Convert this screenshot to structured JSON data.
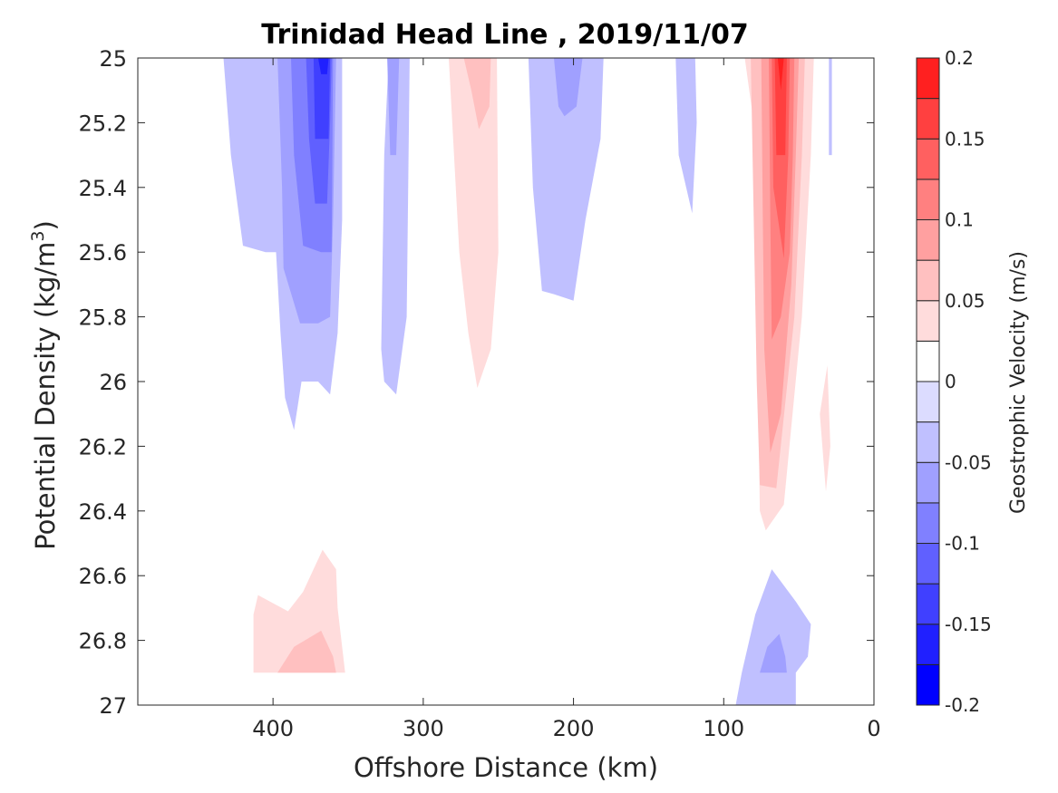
{
  "chart_data": {
    "type": "contour",
    "title": "Trinidad Head Line , 2019/11/07",
    "xlabel": "Offshore Distance (km)",
    "ylabel": "Potential Density (kg/m",
    "ylabel_sup": "3",
    "ylabel_close": ")",
    "xlim": [
      490,
      0
    ],
    "ylim": [
      25,
      27
    ],
    "x_reversed": true,
    "y_reversed": true,
    "xticks": [
      400,
      300,
      200,
      100,
      0
    ],
    "yticks": [
      25,
      25.2,
      25.4,
      25.6,
      25.8,
      26,
      26.2,
      26.4,
      26.6,
      26.8,
      27
    ],
    "ytick_labels": [
      "25",
      "25.2",
      "25.4",
      "25.6",
      "25.8",
      "26",
      "26.2",
      "26.4",
      "26.6",
      "26.8",
      "27"
    ],
    "colorbar": {
      "label": "Geostrophic Velocity (m/s)",
      "range": [
        -0.2,
        0.2
      ],
      "ticks": [
        -0.2,
        -0.15,
        -0.1,
        -0.05,
        0,
        0.05,
        0.1,
        0.15,
        0.2
      ],
      "tick_labels": [
        "-0.2",
        "-0.15",
        "-0.1",
        "-0.05",
        "0",
        "0.05",
        "0.1",
        "0.15",
        "0.2"
      ],
      "levels": [
        -0.2,
        -0.175,
        -0.15,
        -0.125,
        -0.1,
        -0.075,
        -0.05,
        -0.025,
        0,
        0.025,
        0.05,
        0.075,
        0.1,
        0.125,
        0.15,
        0.175,
        0.2
      ],
      "colors": [
        "#0000ff",
        "#2020ff",
        "#4040ff",
        "#6060ff",
        "#8080ff",
        "#a0a0ff",
        "#c0c0ff",
        "#dcdcff",
        "#ffffff",
        "#ffdcdc",
        "#ffc0c0",
        "#ffa0a0",
        "#ff8080",
        "#ff6060",
        "#ff4040",
        "#ff2020"
      ]
    },
    "regions": [
      {
        "name": "neg-core-left",
        "levels": [
          {
            "v": -0.025,
            "pts": [
              [
                433,
                25
              ],
              [
                428,
                25.3
              ],
              [
                420,
                25.58
              ],
              [
                405,
                25.6
              ],
              [
                398,
                25.6
              ],
              [
                395,
                25.85
              ],
              [
                392,
                26.05
              ],
              [
                386,
                26.15
              ],
              [
                381,
                26.0
              ],
              [
                370,
                26.0
              ],
              [
                362,
                26.04
              ],
              [
                357,
                25.85
              ],
              [
                354,
                25.5
              ],
              [
                354,
                25
              ]
            ]
          },
          {
            "v": -0.05,
            "pts": [
              [
                397,
                25
              ],
              [
                394,
                25.4
              ],
              [
                393,
                25.65
              ],
              [
                382,
                25.82
              ],
              [
                370,
                25.82
              ],
              [
                362,
                25.8
              ],
              [
                360,
                25.5
              ],
              [
                358,
                25
              ]
            ]
          },
          {
            "v": -0.075,
            "pts": [
              [
                388,
                25
              ],
              [
                386,
                25.3
              ],
              [
                380,
                25.58
              ],
              [
                368,
                25.6
              ],
              [
                361,
                25.6
              ],
              [
                360,
                25
              ]
            ]
          },
          {
            "v": -0.1,
            "pts": [
              [
                378,
                25
              ],
              [
                376,
                25.25
              ],
              [
                372,
                25.45
              ],
              [
                364,
                25.45
              ],
              [
                362,
                25.2
              ],
              [
                361,
                25
              ]
            ]
          },
          {
            "v": -0.125,
            "pts": [
              [
                373,
                25
              ],
              [
                372,
                25.25
              ],
              [
                363,
                25.25
              ],
              [
                362,
                25
              ]
            ]
          },
          {
            "v": -0.15,
            "pts": [
              [
                370,
                25
              ],
              [
                368,
                25.05
              ],
              [
                364,
                25.05
              ],
              [
                363,
                25
              ]
            ]
          }
        ]
      },
      {
        "name": "neg-thin-left",
        "levels": [
          {
            "v": -0.025,
            "pts": [
              [
                323,
                25
              ],
              [
                326,
                25.3
              ],
              [
                328,
                25.9
              ],
              [
                326,
                26.0
              ],
              [
                318,
                26.04
              ],
              [
                311,
                25.8
              ],
              [
                309,
                25
              ]
            ]
          },
          {
            "v": -0.05,
            "pts": [
              [
                324,
                25
              ],
              [
                322,
                25.3
              ],
              [
                318,
                25.3
              ],
              [
                316,
                25
              ]
            ]
          }
        ]
      },
      {
        "name": "neg-mid",
        "levels": [
          {
            "v": -0.025,
            "pts": [
              [
                230,
                25
              ],
              [
                227,
                25.4
              ],
              [
                221,
                25.72
              ],
              [
                213,
                25.73
              ],
              [
                200,
                25.75
              ],
              [
                192,
                25.5
              ],
              [
                182,
                25.25
              ],
              [
                180,
                25
              ]
            ]
          },
          {
            "v": -0.05,
            "pts": [
              [
                213,
                25
              ],
              [
                210,
                25.15
              ],
              [
                206,
                25.18
              ],
              [
                198,
                25.15
              ],
              [
                194,
                25
              ]
            ]
          }
        ]
      },
      {
        "name": "neg-thin-right",
        "levels": [
          {
            "v": -0.025,
            "pts": [
              [
                132,
                25
              ],
              [
                130,
                25.3
              ],
              [
                121,
                25.48
              ],
              [
                118,
                25.2
              ],
              [
                119,
                25
              ]
            ]
          }
        ]
      },
      {
        "name": "neg-far-right",
        "levels": [
          {
            "v": -0.025,
            "pts": [
              [
                30,
                25
              ],
              [
                30,
                25.3
              ],
              [
                28,
                25.3
              ],
              [
                28,
                25
              ]
            ]
          }
        ]
      },
      {
        "name": "neg-bottom",
        "levels": [
          {
            "v": -0.025,
            "pts": [
              [
                92,
                27
              ],
              [
                88,
                26.9
              ],
              [
                79,
                26.72
              ],
              [
                68,
                26.58
              ],
              [
                52,
                26.68
              ],
              [
                42,
                26.75
              ],
              [
                44,
                26.85
              ],
              [
                52,
                26.9
              ],
              [
                52,
                27
              ]
            ]
          },
          {
            "v": -0.05,
            "pts": [
              [
                76,
                26.9
              ],
              [
                71,
                26.82
              ],
              [
                63,
                26.78
              ],
              [
                59,
                26.85
              ],
              [
                58,
                26.9
              ]
            ]
          }
        ]
      },
      {
        "name": "pos-left-mid",
        "levels": [
          {
            "v": 0.025,
            "pts": [
              [
                283,
                25
              ],
              [
                276,
                25.6
              ],
              [
                270,
                25.85
              ],
              [
                264,
                26.02
              ],
              [
                255,
                25.9
              ],
              [
                250,
                25.6
              ],
              [
                251,
                25
              ]
            ]
          },
          {
            "v": 0.05,
            "pts": [
              [
                273,
                25
              ],
              [
                268,
                25.1
              ],
              [
                263,
                25.22
              ],
              [
                256,
                25.15
              ],
              [
                255,
                25
              ]
            ]
          }
        ]
      },
      {
        "name": "pos-bottom-left",
        "levels": [
          {
            "v": 0.025,
            "pts": [
              [
                413,
                26.9
              ],
              [
                413,
                26.72
              ],
              [
                410,
                26.66
              ],
              [
                390,
                26.71
              ],
              [
                380,
                26.65
              ],
              [
                367,
                26.52
              ],
              [
                358,
                26.58
              ],
              [
                357,
                26.7
              ],
              [
                352,
                26.9
              ]
            ]
          },
          {
            "v": 0.05,
            "pts": [
              [
                397,
                26.9
              ],
              [
                386,
                26.82
              ],
              [
                368,
                26.77
              ],
              [
                360,
                26.85
              ],
              [
                358,
                26.9
              ]
            ]
          }
        ]
      },
      {
        "name": "pos-core-right",
        "levels": [
          {
            "v": 0.025,
            "pts": [
              [
                86,
                25
              ],
              [
                80,
                25.2
              ],
              [
                78,
                25.7
              ],
              [
                76,
                26.4
              ],
              [
                72,
                26.46
              ],
              [
                60,
                26.38
              ],
              [
                48,
                25.8
              ],
              [
                42,
                25.3
              ],
              [
                40,
                25
              ]
            ]
          },
          {
            "v": 0.05,
            "pts": [
              [
                82,
                25
              ],
              [
                80,
                25.5
              ],
              [
                78,
                26.0
              ],
              [
                76,
                26.32
              ],
              [
                65,
                26.33
              ],
              [
                53,
                25.8
              ],
              [
                48,
                25.3
              ],
              [
                46,
                25
              ]
            ]
          },
          {
            "v": 0.075,
            "pts": [
              [
                75,
                25
              ],
              [
                74,
                25.5
              ],
              [
                73,
                25.9
              ],
              [
                69,
                26.22
              ],
              [
                62,
                26.1
              ],
              [
                55,
                25.7
              ],
              [
                52,
                25.3
              ],
              [
                50,
                25
              ]
            ]
          },
          {
            "v": 0.1,
            "pts": [
              [
                70,
                25
              ],
              [
                69,
                25.5
              ],
              [
                68,
                25.87
              ],
              [
                62,
                25.8
              ],
              [
                56,
                25.6
              ],
              [
                54,
                25.3
              ],
              [
                53,
                25
              ]
            ]
          },
          {
            "v": 0.125,
            "pts": [
              [
                68,
                25
              ],
              [
                67,
                25.4
              ],
              [
                60,
                25.62
              ],
              [
                57,
                25.3
              ],
              [
                56,
                25
              ]
            ]
          },
          {
            "v": 0.15,
            "pts": [
              [
                66,
                25
              ],
              [
                65,
                25.3
              ],
              [
                59,
                25.3
              ],
              [
                58,
                25
              ]
            ]
          },
          {
            "v": 0.175,
            "pts": [
              [
                64,
                25
              ],
              [
                62,
                25.1
              ],
              [
                60,
                25
              ]
            ]
          }
        ]
      },
      {
        "name": "pos-far-right",
        "levels": [
          {
            "v": 0.025,
            "pts": [
              [
                36,
                26.1
              ],
              [
                31,
                25.95
              ],
              [
                29,
                26.2
              ],
              [
                32,
                26.34
              ]
            ]
          }
        ]
      }
    ]
  }
}
